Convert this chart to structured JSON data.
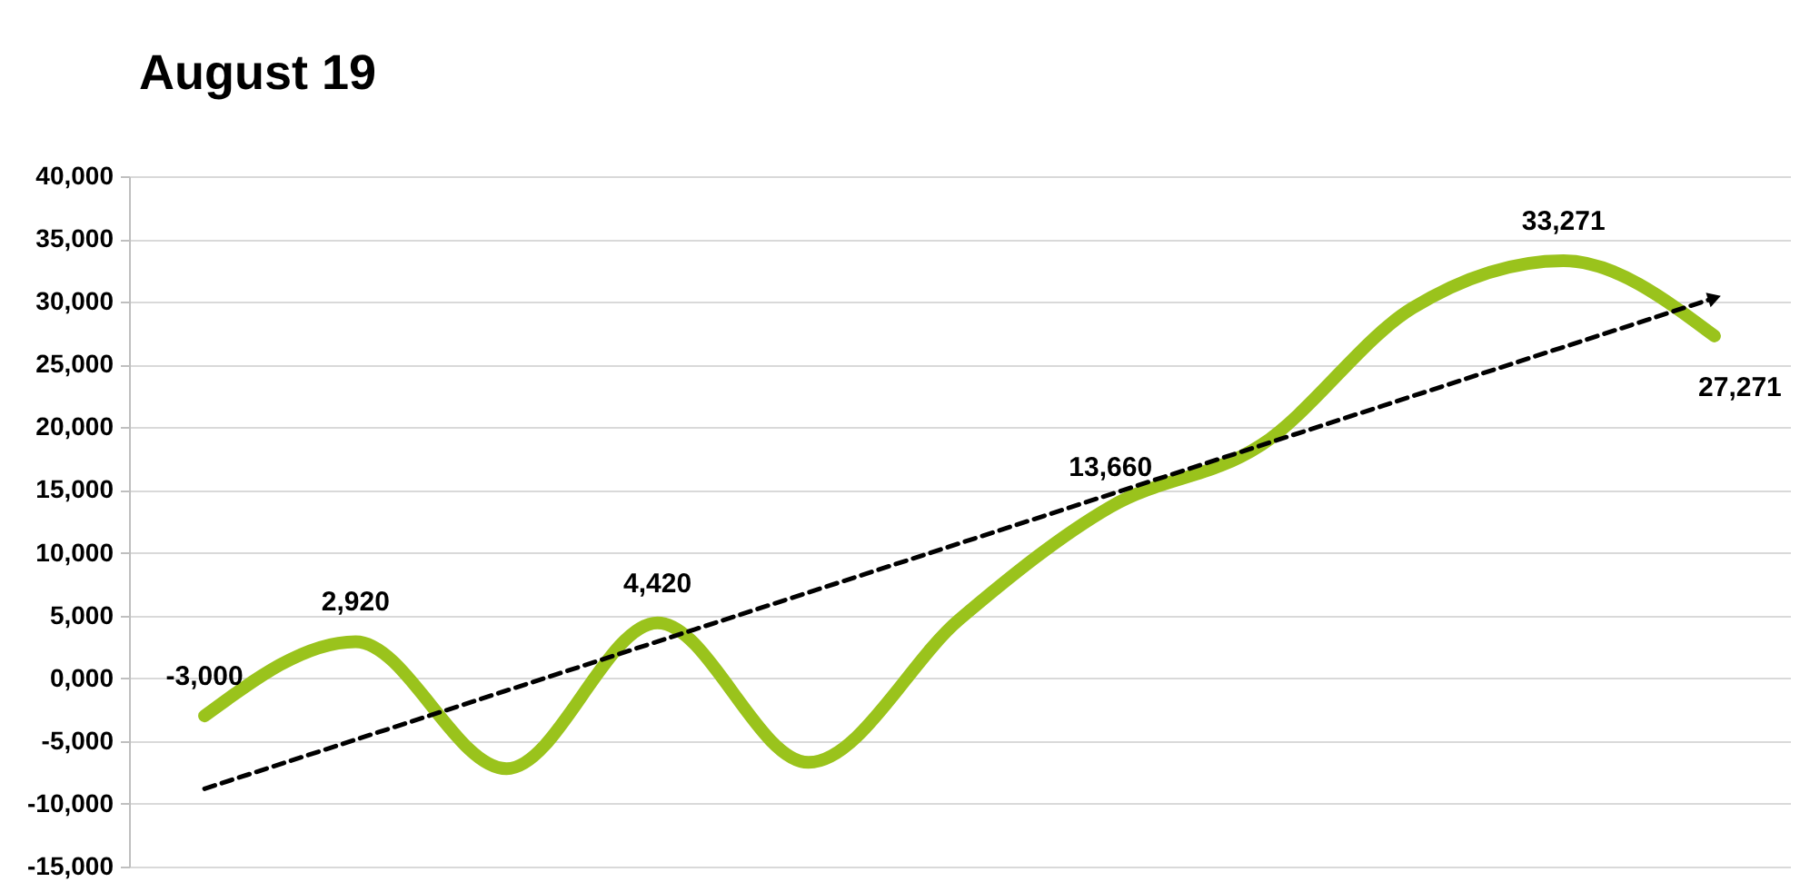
{
  "chart_data": {
    "type": "line",
    "title": "August 19",
    "categories": [
      null,
      null,
      null,
      null,
      null,
      null,
      null,
      null,
      null,
      null,
      null
    ],
    "series": [
      {
        "color": "#9ac31c",
        "values": [
          -3000,
          2920,
          -7200,
          4420,
          -6700,
          4700,
          13660,
          18600,
          29500,
          33271,
          27271
        ],
        "value_labels": [
          "-3,000",
          "2,920",
          null,
          "4,420",
          null,
          null,
          "13,660",
          null,
          null,
          "33,271",
          "27,271"
        ]
      },
      {
        "type": "line",
        "color": "#000000",
        "line_style": "dashed",
        "values": [
          -8800,
          null,
          null,
          null,
          null,
          null,
          null,
          null,
          null,
          null,
          30300
        ]
      }
    ],
    "ylim": [
      -15000,
      40000
    ],
    "yticks": [
      {
        "value": -15000,
        "label": "-15,000"
      },
      {
        "value": -10000,
        "label": "-10,000"
      },
      {
        "value": -5000,
        "label": "-5,000"
      },
      {
        "value": 0,
        "label": "0,000"
      },
      {
        "value": 5000,
        "label": "5,000"
      },
      {
        "value": 10000,
        "label": "10,000"
      },
      {
        "value": 15000,
        "label": "15,000"
      },
      {
        "value": 20000,
        "label": "20,000"
      },
      {
        "value": 25000,
        "label": "25,000"
      },
      {
        "value": 30000,
        "label": "30,000"
      },
      {
        "value": 35000,
        "label": "35,000"
      },
      {
        "value": 40000,
        "label": "40,000"
      }
    ],
    "grid": "y",
    "tick_labels": "y"
  }
}
